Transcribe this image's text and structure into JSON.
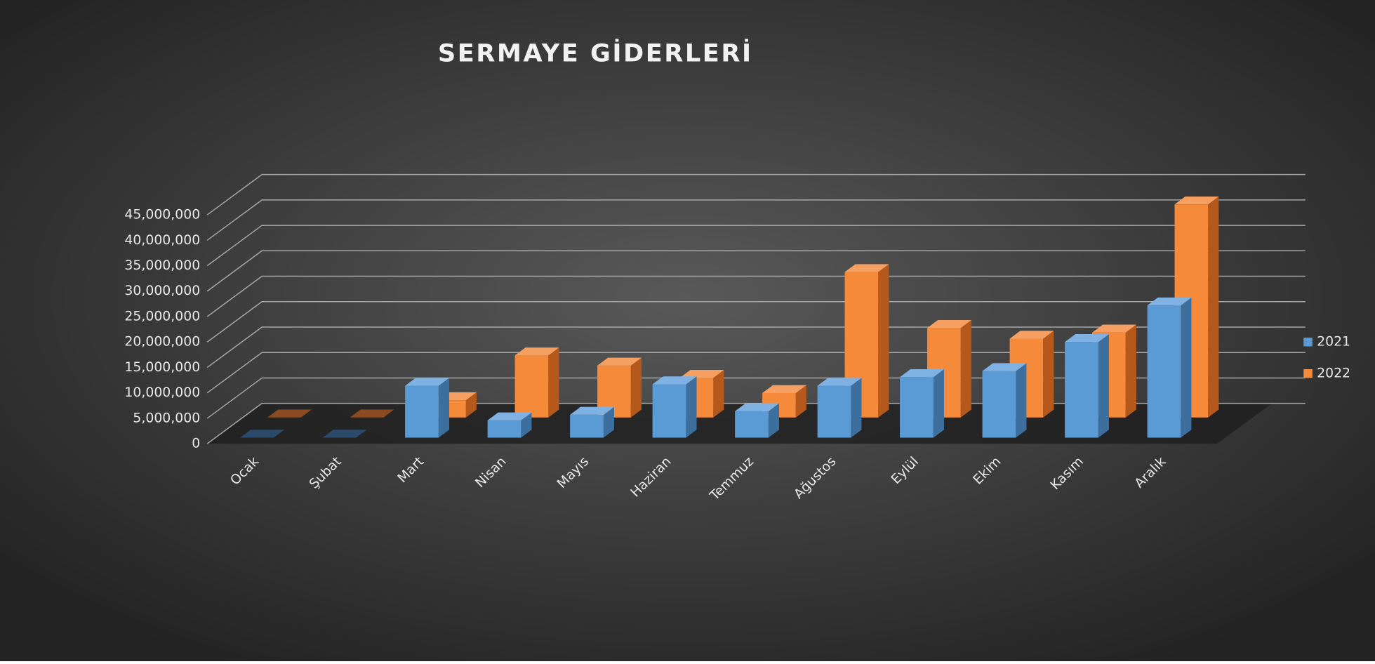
{
  "chart_data": {
    "type": "bar3d",
    "title": "SERMAYE GİDERLERİ",
    "categories": [
      "Ocak",
      "Şubat",
      "Mart",
      "Nisan",
      "Mayıs",
      "Haziran",
      "Temmuz",
      "Ağustos",
      "Eylül",
      "Ekim",
      "Kasım",
      "Aralık"
    ],
    "series": [
      {
        "name": "2021",
        "color": "#5b9bd5",
        "values": [
          0,
          0,
          10200000,
          3400000,
          4500000,
          10500000,
          5200000,
          10200000,
          11900000,
          13100000,
          18800000,
          26000000
        ]
      },
      {
        "name": "2022",
        "color": "#f58a3a",
        "values": [
          0,
          0,
          3400000,
          12200000,
          10200000,
          7800000,
          4800000,
          28600000,
          17600000,
          15500000,
          16700000,
          41900000
        ]
      }
    ],
    "ylim": [
      0,
      45000000
    ],
    "yticks": [
      0,
      {
        "value": 5000000,
        "label": "5,000,000"
      },
      {
        "value": 10000000,
        "label": "10,000,000"
      },
      {
        "value": 15000000,
        "label": "15,000,000"
      },
      {
        "value": 20000000,
        "label": "20,000,000"
      },
      {
        "value": 25000000,
        "label": "25,000,000"
      },
      {
        "value": 30000000,
        "label": "30,000,000"
      },
      {
        "value": 35000000,
        "label": "35,000,000"
      },
      {
        "value": 40000000,
        "label": "40,000,000"
      },
      {
        "value": 45000000,
        "label": "45,000,000"
      }
    ],
    "grid": true,
    "legend": "right"
  }
}
